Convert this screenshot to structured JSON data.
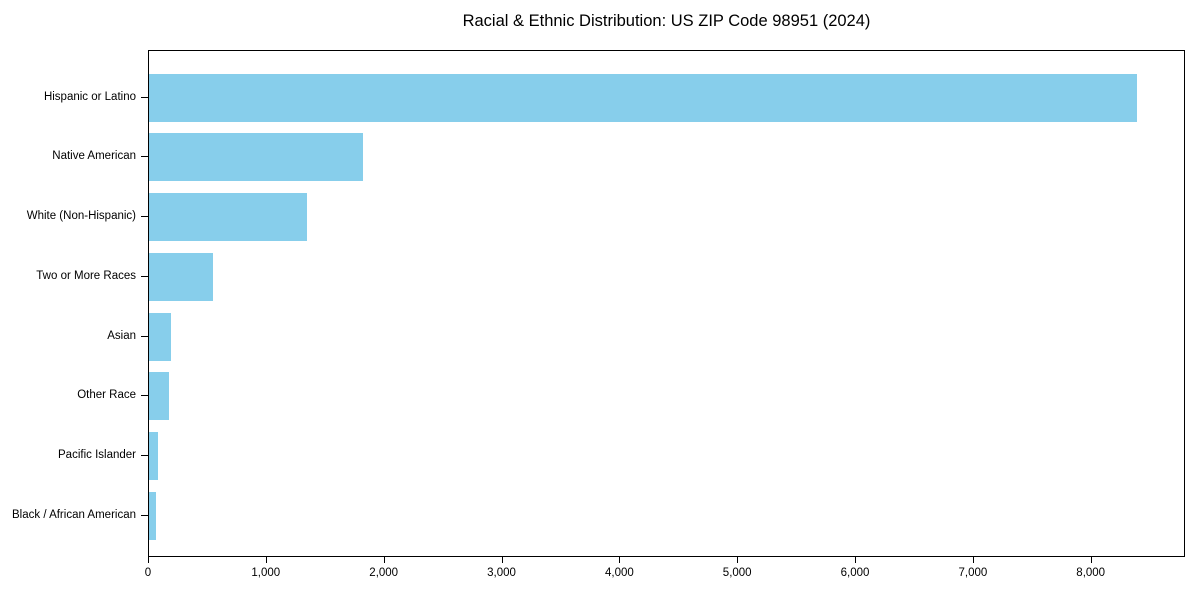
{
  "chart_data": {
    "type": "bar",
    "orientation": "horizontal",
    "title": "Racial & Ethnic Distribution: US ZIP Code 98951 (2024)",
    "categories": [
      "Hispanic or Latino",
      "Native American",
      "White (Non-Hispanic)",
      "Two or More Races",
      "Asian",
      "Other Race",
      "Pacific Islander",
      "Black / African American"
    ],
    "values": [
      8380,
      1815,
      1340,
      545,
      190,
      168,
      80,
      55
    ],
    "xlabel": "",
    "ylabel": "",
    "xlim": [
      0,
      8800
    ],
    "x_ticks": [
      0,
      1000,
      2000,
      3000,
      4000,
      5000,
      6000,
      7000,
      8000
    ],
    "x_tick_labels": [
      "0",
      "1,000",
      "2,000",
      "3,000",
      "4,000",
      "5,000",
      "6,000",
      "7,000",
      "8,000"
    ],
    "bar_color": "#87ceeb",
    "axis_color": "#000000",
    "text_color": "#000000",
    "background_color": "#ffffff",
    "grid": false,
    "legend": "none"
  }
}
